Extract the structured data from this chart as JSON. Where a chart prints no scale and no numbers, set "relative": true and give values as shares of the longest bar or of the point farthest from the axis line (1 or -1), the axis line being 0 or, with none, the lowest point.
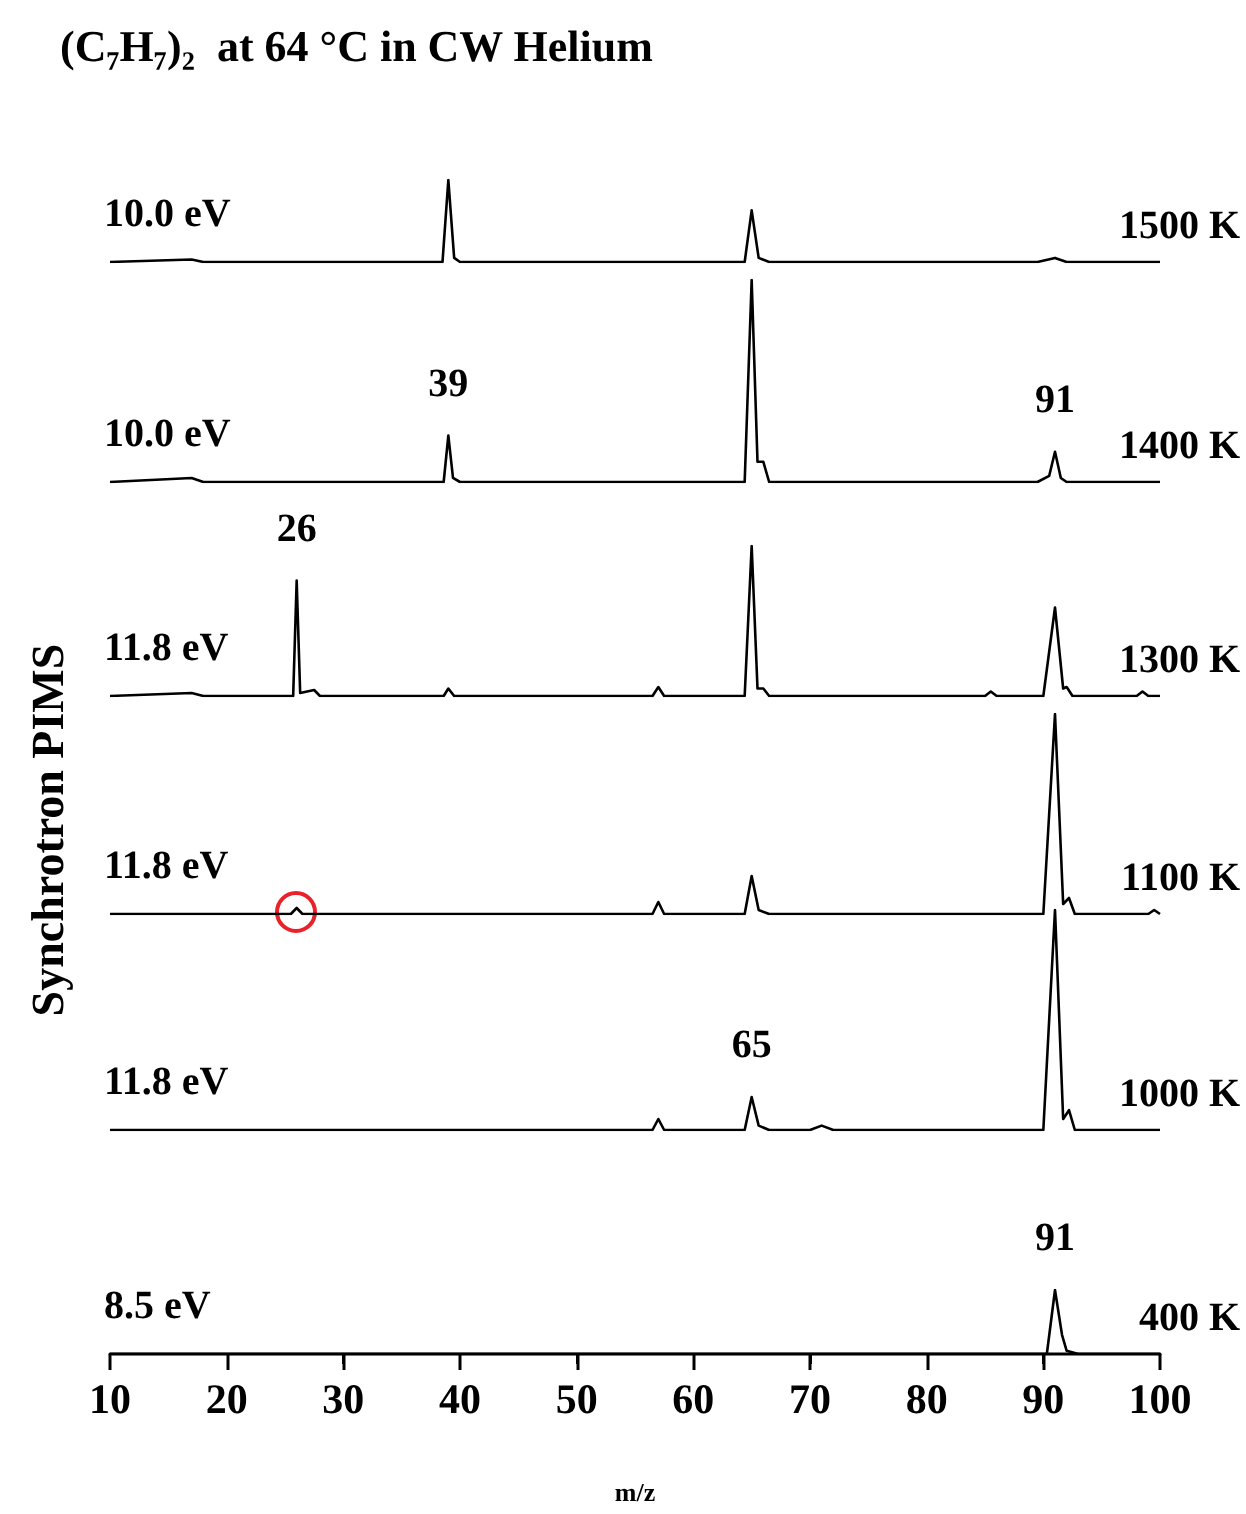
{
  "chart_data": [
    {
      "type": "line",
      "relative": true,
      "marker": "none",
      "title": "(C₇H₇)₂  at 64 °C in CW Helium",
      "xlim": [
        10,
        100
      ],
      "tick_labels": false,
      "annotations": [
        "10.0 eV"
      ],
      "series": [
        {
          "name": "1500 K",
          "color": "#000000",
          "x": [
            10,
            17,
            18,
            38.5,
            39,
            39.5,
            40,
            64.4,
            65,
            65.6,
            66.5,
            89.5,
            91,
            92,
            100
          ],
          "values": [
            0,
            0.03,
            0,
            0,
            1,
            0.05,
            0,
            0,
            0.63,
            0.05,
            0,
            0,
            0.05,
            0,
            0
          ]
        }
      ]
    },
    {
      "type": "line",
      "relative": true,
      "marker": "none",
      "xlim": [
        10,
        100
      ],
      "tick_labels": false,
      "annotations": [
        "10.0 eV",
        {
          "text": "39",
          "x": 39,
          "y": 0.23
        },
        {
          "text": "91",
          "x": 91,
          "y": 0.15
        }
      ],
      "series": [
        {
          "name": "1400 K",
          "color": "#000000",
          "x": [
            10,
            17,
            18,
            38.6,
            39,
            39.4,
            40,
            64.4,
            65,
            65.5,
            66,
            66.5,
            89.5,
            90.5,
            91,
            91.5,
            92,
            100
          ],
          "values": [
            0,
            0.02,
            0,
            0,
            0.23,
            0.02,
            0,
            0,
            1,
            0.1,
            0.1,
            0,
            0,
            0.03,
            0.15,
            0.02,
            0,
            0
          ]
        }
      ]
    },
    {
      "type": "line",
      "relative": true,
      "marker": "none",
      "xlim": [
        10,
        100
      ],
      "tick_labels": false,
      "annotations": [
        "11.8 eV",
        {
          "text": "26",
          "x": 26,
          "y": 0.77
        }
      ],
      "series": [
        {
          "name": "1300 K",
          "color": "#000000",
          "x": [
            10,
            17,
            18,
            25.7,
            26,
            26.3,
            27.5,
            28,
            38.6,
            39,
            39.5,
            56.5,
            57,
            57.5,
            64.4,
            65,
            65.5,
            66,
            66.5,
            85,
            85.5,
            86,
            90,
            91,
            91.7,
            92,
            92.5,
            98,
            98.5,
            99,
            100
          ],
          "values": [
            0,
            0.02,
            0,
            0,
            0.77,
            0.02,
            0.04,
            0,
            0,
            0.05,
            0,
            0,
            0.06,
            0,
            0,
            1,
            0.05,
            0.05,
            0,
            0,
            0.03,
            0,
            0,
            0.59,
            0.05,
            0.06,
            0,
            0,
            0.03,
            0,
            0
          ]
        }
      ]
    },
    {
      "type": "line",
      "relative": true,
      "marker": "none",
      "xlim": [
        10,
        100
      ],
      "tick_labels": false,
      "annotations": [
        "11.8 eV"
      ],
      "series": [
        {
          "name": "1100 K",
          "color": "#000000",
          "x": [
            10,
            25.5,
            26,
            26.5,
            56.5,
            57,
            57.5,
            64.4,
            65,
            65.6,
            66.5,
            90,
            91,
            91.7,
            92.2,
            92.7,
            99,
            99.5,
            100
          ],
          "values": [
            0,
            0,
            0.03,
            0,
            0,
            0.06,
            0,
            0,
            0.19,
            0.02,
            0,
            0,
            1,
            0.05,
            0.08,
            0,
            0,
            0.02,
            0
          ]
        }
      ]
    },
    {
      "type": "line",
      "relative": true,
      "marker": "none",
      "xlim": [
        10,
        100
      ],
      "tick_labels": false,
      "annotations": [
        "11.8 eV",
        {
          "text": "65",
          "x": 65,
          "y": 0.15
        }
      ],
      "series": [
        {
          "name": "1000 K",
          "color": "#000000",
          "x": [
            10,
            56.5,
            57,
            57.5,
            64.4,
            65,
            65.6,
            66.5,
            70,
            71,
            72,
            90,
            91,
            91.7,
            92.2,
            92.7,
            100
          ],
          "values": [
            0,
            0,
            0.05,
            0,
            0,
            0.15,
            0.02,
            0,
            0,
            0.02,
            0,
            0,
            1,
            0.05,
            0.09,
            0,
            0
          ]
        }
      ]
    },
    {
      "type": "line",
      "relative": true,
      "marker": "none",
      "xlabel": "m/z",
      "ylabel": "Synchrotron PIMS",
      "xlim": [
        10,
        100
      ],
      "xticks": [
        10,
        20,
        30,
        40,
        50,
        60,
        70,
        80,
        90,
        100
      ],
      "tick_labels": "x",
      "annotations": [
        "8.5 eV",
        {
          "text": "91",
          "x": 91,
          "y": 1
        }
      ],
      "series": [
        {
          "name": "400 K",
          "color": "#000000",
          "x": [
            10,
            90.3,
            91,
            91.6,
            92,
            93,
            100
          ],
          "values": [
            0,
            0,
            1,
            0.3,
            0.05,
            0,
            0
          ]
        }
      ]
    }
  ]
}
